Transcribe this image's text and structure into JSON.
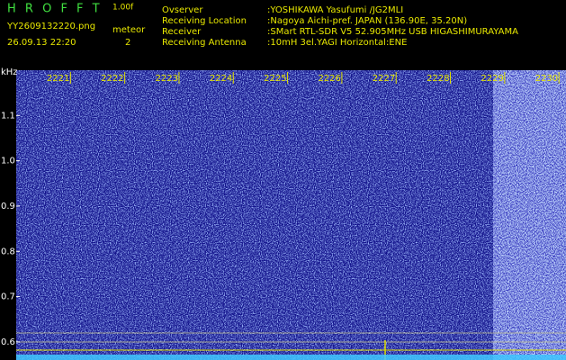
{
  "header": {
    "app_name": "H R O F F T",
    "version": "1.00f",
    "filename": "YY2609132220.png",
    "datetime": "26.09.13 22:20",
    "meteor_label": "meteor",
    "meteor_count": "2",
    "info": [
      {
        "label": "Ovserver",
        "value": ":YOSHIKAWA Yasufumi /JG2MLI"
      },
      {
        "label": "Receiving Location",
        "value": ":Nagoya Aichi-pref. JAPAN (136.90E, 35.20N)"
      },
      {
        "label": "Receiver",
        "value": ":SMart RTL-SDR V5 52.905MHz USB HIGASHIMURAYAMA"
      },
      {
        "label": "Receiving Antenna",
        "value": ":10mH 3el.YAGI Horizontal:ENE"
      }
    ]
  },
  "chart_data": {
    "type": "spectrogram",
    "y_axis_label": "kHz",
    "xlim": [
      2220,
      2230.13
    ],
    "xticks": [
      2221,
      2222,
      2223,
      2224,
      2225,
      2226,
      2227,
      2228,
      2229,
      2230
    ],
    "ylim": [
      0.56,
      1.2
    ],
    "yticks": [
      1.1,
      {
        "value": 1,
        "label": "1.0"
      },
      0.9,
      0.8,
      0.7,
      0.6
    ]
  }
}
